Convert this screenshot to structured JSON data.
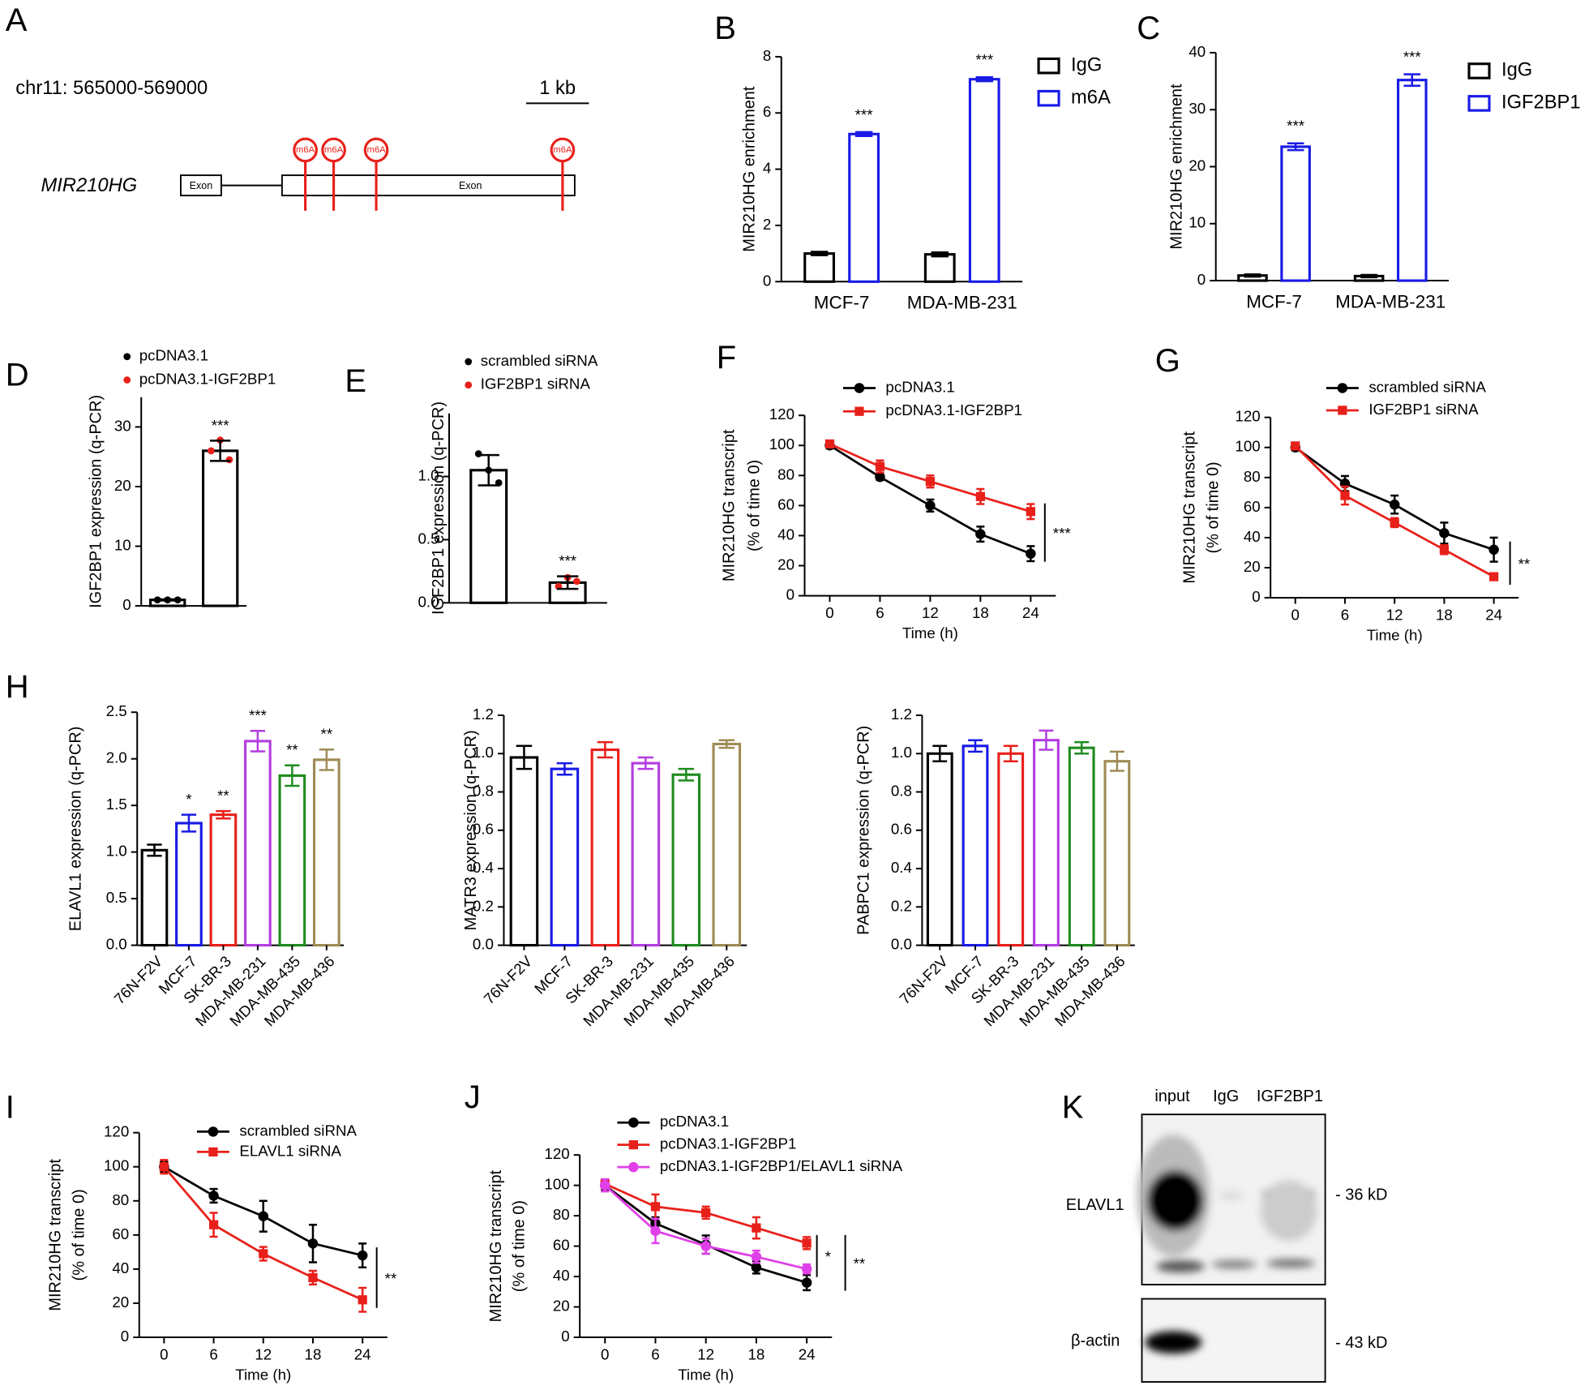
{
  "diagram": {
    "panel": "A",
    "region": "chr11: 565000-569000",
    "scale": "1 kb",
    "gene": "MIR210HG",
    "exons": [
      "Exon",
      "Exon"
    ],
    "sites": [
      "m6A",
      "m6A",
      "m6A",
      "m6A"
    ]
  },
  "blot": {
    "panel": "K",
    "lanes": [
      "input",
      "IgG",
      "IGF2BP1"
    ],
    "proteins": [
      "ELAVL1",
      "β-actin"
    ],
    "sizes": [
      "- 36 kD",
      "- 43 kD"
    ]
  },
  "chart_data": [
    {
      "type": "bar",
      "panel": "B",
      "ylabel": "MIR210HG enrichment",
      "categories": [
        "MCF-7",
        "MDA-MB-231"
      ],
      "series": [
        {
          "name": "IgG",
          "color": "#000000",
          "values": [
            1.0,
            0.97
          ],
          "errors": [
            0.06,
            0.07
          ]
        },
        {
          "name": "m6A",
          "color": "#1a1ae6",
          "values": [
            5.25,
            7.2
          ],
          "errors": [
            0.07,
            0.07
          ],
          "sig": [
            "***",
            "***"
          ]
        }
      ],
      "ylim": [
        0,
        8
      ],
      "yticks": [
        0,
        2,
        4,
        6,
        8
      ]
    },
    {
      "type": "bar",
      "panel": "C",
      "ylabel": "MIR210HG enrichment",
      "categories": [
        "MCF-7",
        "MDA-MB-231"
      ],
      "series": [
        {
          "name": "IgG",
          "color": "#000000",
          "values": [
            0.9,
            0.8
          ],
          "errors": [
            0.2,
            0.2
          ]
        },
        {
          "name": "IGF2BP1",
          "color": "#1a1ae6",
          "values": [
            23.5,
            35.2
          ],
          "errors": [
            0.6,
            1.0
          ],
          "sig": [
            "***",
            "***"
          ]
        }
      ],
      "ylim": [
        0,
        40
      ],
      "yticks": [
        0,
        10,
        20,
        30,
        40
      ]
    },
    {
      "type": "bar",
      "panel": "D",
      "ylabel": "IGF2BP1 expression (q-PCR)",
      "categories": [
        "pcDNA3.1",
        "pcDNA3.1-IGF2BP1"
      ],
      "values": [
        1.0,
        26.0
      ],
      "errors": [
        0.1,
        1.7
      ],
      "color": "#000000",
      "points": [
        [
          1.0,
          1.0,
          1.0
        ],
        [
          27.8,
          26.0,
          24.5
        ]
      ],
      "point_colors": [
        "#000000",
        "#e8201a"
      ],
      "sig": [
        null,
        "***"
      ],
      "legend": true,
      "ylim": [
        0,
        35
      ],
      "yticks": [
        0,
        10,
        20,
        30
      ]
    },
    {
      "type": "bar",
      "panel": "E",
      "ylabel": "IGF2BP1 expression (q-PCR)",
      "categories": [
        "scrambled siRNA",
        "IGF2BP1 siRNA"
      ],
      "values": [
        1.05,
        0.16
      ],
      "errors": [
        0.12,
        0.05
      ],
      "color": "#000000",
      "points": [
        [
          1.18,
          1.05,
          0.95
        ],
        [
          0.2,
          0.13,
          0.17
        ]
      ],
      "point_colors": [
        "#000000",
        "#e8201a"
      ],
      "sig": [
        null,
        "***"
      ],
      "legend": true,
      "ylim": [
        0,
        1.5
      ],
      "yticks": [
        {
          "value": 0,
          "label": "0.0"
        },
        0.5,
        {
          "value": 1,
          "label": "1.0"
        }
      ]
    },
    {
      "type": "line",
      "panel": "F",
      "ylabel": [
        "MIR210HG transcript",
        "(% of time 0)"
      ],
      "xlabel": "Time (h)",
      "x": [
        0,
        6,
        12,
        18,
        24
      ],
      "xlim": [
        -3,
        27
      ],
      "xticks": [
        0,
        6,
        12,
        18,
        24
      ],
      "ylim": [
        0,
        120
      ],
      "yticks": [
        0,
        20,
        40,
        60,
        80,
        100,
        120
      ],
      "series": [
        {
          "name": "pcDNA3.1",
          "color": "#000000",
          "marker": "circle",
          "values": [
            100,
            79,
            60,
            41,
            28
          ],
          "errors": [
            2,
            2,
            4,
            5,
            5
          ]
        },
        {
          "name": "pcDNA3.1-IGF2BP1",
          "color": "#e8201a",
          "marker": "square",
          "values": [
            101,
            86,
            76,
            66,
            56
          ],
          "errors": [
            2,
            4,
            4,
            5,
            5
          ]
        }
      ],
      "annotations": [
        "***"
      ]
    },
    {
      "type": "line",
      "panel": "G",
      "ylabel": [
        "MIR210HG transcript",
        "(% of time 0)"
      ],
      "xlabel": "Time (h)",
      "x": [
        0,
        6,
        12,
        18,
        24
      ],
      "xlim": [
        -3,
        27
      ],
      "xticks": [
        0,
        6,
        12,
        18,
        24
      ],
      "ylim": [
        0,
        120
      ],
      "yticks": [
        0,
        20,
        40,
        60,
        80,
        100,
        120
      ],
      "series": [
        {
          "name": "scrambled siRNA",
          "color": "#000000",
          "marker": "circle",
          "values": [
            100,
            76,
            62,
            43,
            32
          ],
          "errors": [
            2,
            5,
            6,
            7,
            8
          ]
        },
        {
          "name": "IGF2BP1 siRNA",
          "color": "#e8201a",
          "marker": "square",
          "values": [
            101,
            68,
            50,
            32,
            14
          ],
          "errors": [
            2,
            6,
            3,
            3,
            1
          ]
        }
      ],
      "annotations": [
        "**"
      ]
    },
    {
      "type": "bar",
      "panel": "H",
      "ylabel": "ELAVL1 expression (q-PCR)",
      "categories": [
        "76N-F2V",
        "MCF-7",
        "SK-BR-3",
        "MDA-MB-231",
        "MDA-MB-435",
        "MDA-MB-436"
      ],
      "values": [
        1.02,
        1.31,
        1.4,
        2.19,
        1.82,
        1.99
      ],
      "errors": [
        0.06,
        0.09,
        0.04,
        0.11,
        0.11,
        0.11
      ],
      "colors": [
        "#000000",
        "#1a1ae6",
        "#e8201a",
        "#b43de0",
        "#1e8c1e",
        "#9e8b55"
      ],
      "sig": [
        null,
        "*",
        "**",
        "***",
        "**",
        "**"
      ],
      "ylim": [
        0,
        2.5
      ],
      "yticks": [
        {
          "value": 0,
          "label": "0.0"
        },
        0.5,
        {
          "value": 1,
          "label": "1.0"
        },
        1.5,
        {
          "value": 2,
          "label": "2.0"
        },
        2.5
      ]
    },
    {
      "type": "bar",
      "ylabel": "MATR3 expression (q-PCR)",
      "categories": [
        "76N-F2V",
        "MCF-7",
        "SK-BR-3",
        "MDA-MB-231",
        "MDA-MB-435",
        "MDA-MB-436"
      ],
      "values": [
        0.98,
        0.92,
        1.02,
        0.95,
        0.89,
        1.05
      ],
      "errors": [
        0.06,
        0.03,
        0.04,
        0.03,
        0.03,
        0.02
      ],
      "colors": [
        "#000000",
        "#1a1ae6",
        "#e8201a",
        "#b43de0",
        "#1e8c1e",
        "#9e8b55"
      ],
      "ylim": [
        0,
        1.2
      ],
      "yticks": [
        {
          "value": 0,
          "label": "0.0"
        },
        0.2,
        0.4,
        0.6,
        0.8,
        {
          "value": 1,
          "label": "1.0"
        },
        1.2
      ]
    },
    {
      "type": "bar",
      "ylabel": "PABPC1 expression (q-PCR)",
      "categories": [
        "76N-F2V",
        "MCF-7",
        "SK-BR-3",
        "MDA-MB-231",
        "MDA-MB-435",
        "MDA-MB-436"
      ],
      "values": [
        1.0,
        1.04,
        1.0,
        1.07,
        1.03,
        0.96
      ],
      "errors": [
        0.04,
        0.03,
        0.04,
        0.05,
        0.03,
        0.05
      ],
      "colors": [
        "#000000",
        "#1a1ae6",
        "#e8201a",
        "#b43de0",
        "#1e8c1e",
        "#9e8b55"
      ],
      "ylim": [
        0,
        1.2
      ],
      "yticks": [
        {
          "value": 0,
          "label": "0.0"
        },
        0.2,
        0.4,
        0.6,
        0.8,
        {
          "value": 1,
          "label": "1.0"
        },
        1.2
      ]
    },
    {
      "type": "line",
      "panel": "I",
      "ylabel": [
        "MIR210HG transcript",
        "(% of time 0)"
      ],
      "xlabel": "Time (h)",
      "x": [
        0,
        6,
        12,
        18,
        24
      ],
      "xlim": [
        -3,
        27
      ],
      "xticks": [
        0,
        6,
        12,
        18,
        24
      ],
      "ylim": [
        0,
        120
      ],
      "yticks": [
        0,
        20,
        40,
        60,
        80,
        100,
        120
      ],
      "series": [
        {
          "name": "scrambled siRNA",
          "color": "#000000",
          "marker": "circle",
          "values": [
            100,
            83,
            71,
            55,
            48
          ],
          "errors": [
            3,
            4,
            9,
            11,
            7
          ]
        },
        {
          "name": "ELAVL1 siRNA",
          "color": "#e8201a",
          "marker": "square",
          "values": [
            100,
            66,
            49,
            35,
            22
          ],
          "errors": [
            4,
            7,
            4,
            4,
            7
          ]
        }
      ],
      "annotations": [
        "**"
      ]
    },
    {
      "type": "line",
      "panel": "J",
      "ylabel": [
        "MIR210HG transcript",
        "(% of time 0)"
      ],
      "xlabel": "Time (h)",
      "x": [
        0,
        6,
        12,
        18,
        24
      ],
      "xlim": [
        -3,
        27
      ],
      "xticks": [
        0,
        6,
        12,
        18,
        24
      ],
      "ylim": [
        0,
        120
      ],
      "yticks": [
        0,
        20,
        40,
        60,
        80,
        100,
        120
      ],
      "series": [
        {
          "name": "pcDNA3.1",
          "color": "#000000",
          "marker": "circle",
          "values": [
            100,
            75,
            61,
            46,
            36
          ],
          "errors": [
            3,
            4,
            6,
            4,
            5
          ]
        },
        {
          "name": "pcDNA3.1-IGF2BP1",
          "color": "#e8201a",
          "marker": "square",
          "values": [
            101,
            86,
            82,
            72,
            62
          ],
          "errors": [
            3,
            8,
            4,
            7,
            4
          ]
        },
        {
          "name": "pcDNA3.1-IGF2BP1/ELAVL1 siRNA",
          "color": "#e040e8",
          "marker": "circle",
          "values": [
            100,
            70,
            60,
            53,
            45
          ],
          "errors": [
            4,
            8,
            5,
            4,
            3
          ]
        }
      ],
      "annotations": [
        "*",
        "**"
      ]
    }
  ]
}
